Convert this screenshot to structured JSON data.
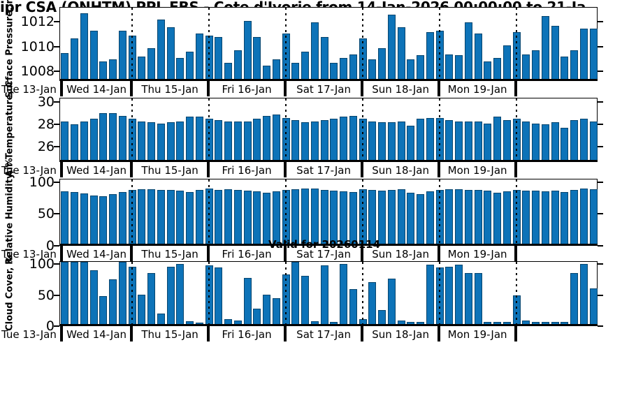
{
  "title": "ipr CSA (ONHTM) PPL EBS  - Cote d'Ivorie from 14-Jan-2026 00:00:00 to 21-Ja",
  "annotation": "Valid for 20260114",
  "colors": {
    "bar": "#0d73b8",
    "bar_edge": "#07456e",
    "dotted_line": "#000000",
    "axis": "#000000"
  },
  "x_axis": {
    "start_label": "Tue 13-Jan",
    "day_labels": [
      "Wed 14-Jan",
      "Thu 15-Jan",
      "Fri 16-Jan",
      "Sat 17-Jan",
      "Sun 18-Jan",
      "Mon 19-Jan"
    ],
    "bars_per_day": 8,
    "interval_hours": 3,
    "total_bars": 56
  },
  "chart_data": [
    {
      "type": "bar",
      "name": "surface-pressure",
      "ylabel": "Surface Pressure, mb",
      "yticks": [
        1008,
        1010,
        1012
      ],
      "ylim": [
        1007.2,
        1013.2
      ],
      "values": [
        1009.3,
        1010.5,
        1012.5,
        1011.1,
        1008.6,
        1008.8,
        1011.1,
        1010.7,
        1009.0,
        1009.7,
        1012.0,
        1011.4,
        1008.9,
        1009.4,
        1010.9,
        1010.7,
        1010.6,
        1008.5,
        1009.5,
        1011.9,
        1010.6,
        1008.3,
        1008.8,
        1010.9,
        1008.5,
        1009.4,
        1011.8,
        1010.6,
        1008.5,
        1008.9,
        1009.2,
        1010.5,
        1008.8,
        1009.7,
        1012.4,
        1011.4,
        1008.8,
        1009.1,
        1011.0,
        1011.1,
        1009.2,
        1009.1,
        1011.8,
        1010.9,
        1008.6,
        1008.9,
        1009.9,
        1011.0,
        1009.2,
        1009.5,
        1012.3,
        1011.5,
        1009.0,
        1009.5,
        1011.3,
        1011.3
      ]
    },
    {
      "type": "bar",
      "name": "air-temperature",
      "ylabel": "Air Temperature, C",
      "yticks": [
        26,
        28,
        30
      ],
      "ylim": [
        24.6,
        30.4
      ],
      "values": [
        28.1,
        27.8,
        28.1,
        28.3,
        28.8,
        28.8,
        28.6,
        28.3,
        28.1,
        28.0,
        27.9,
        28.0,
        28.1,
        28.5,
        28.5,
        28.3,
        28.2,
        28.1,
        28.1,
        28.1,
        28.3,
        28.6,
        28.7,
        28.4,
        28.2,
        28.0,
        28.1,
        28.2,
        28.3,
        28.5,
        28.6,
        28.3,
        28.1,
        28.0,
        28.0,
        28.1,
        27.7,
        28.3,
        28.4,
        28.4,
        28.2,
        28.1,
        28.1,
        28.1,
        27.9,
        28.5,
        28.2,
        28.3,
        28.1,
        27.9,
        27.8,
        28.0,
        27.5,
        28.2,
        28.3,
        28.1
      ]
    },
    {
      "type": "bar",
      "name": "relative-humidity",
      "ylabel": "Relative Humidity, %",
      "yticks": [
        0,
        50,
        100
      ],
      "ylim": [
        0,
        105
      ],
      "values": [
        82,
        81,
        79,
        76,
        74,
        78,
        81,
        84,
        85,
        85,
        84,
        84,
        83,
        81,
        84,
        86,
        84,
        85,
        84,
        83,
        82,
        80,
        82,
        84,
        85,
        86,
        86,
        84,
        83,
        82,
        81,
        85,
        84,
        83,
        84,
        85,
        80,
        78,
        82,
        84,
        85,
        85,
        84,
        84,
        83,
        80,
        82,
        84,
        83,
        83,
        82,
        83,
        81,
        84,
        86,
        85
      ]
    },
    {
      "type": "bar",
      "name": "cloud-cover",
      "ylabel": "Cloud Cover, %",
      "yticks": [
        0,
        50,
        100
      ],
      "ylim": [
        0,
        105
      ],
      "values": [
        100,
        100,
        100,
        87,
        45,
        72,
        100,
        93,
        47,
        83,
        17,
        93,
        97,
        5,
        2,
        95,
        92,
        8,
        6,
        75,
        25,
        47,
        42,
        80,
        100,
        78,
        5,
        95,
        3,
        97,
        57,
        8,
        68,
        23,
        73,
        6,
        4,
        4,
        96,
        92,
        93,
        96,
        83,
        83,
        3,
        4,
        4,
        46,
        6,
        4,
        4,
        4,
        4,
        82,
        97,
        58
      ]
    }
  ]
}
